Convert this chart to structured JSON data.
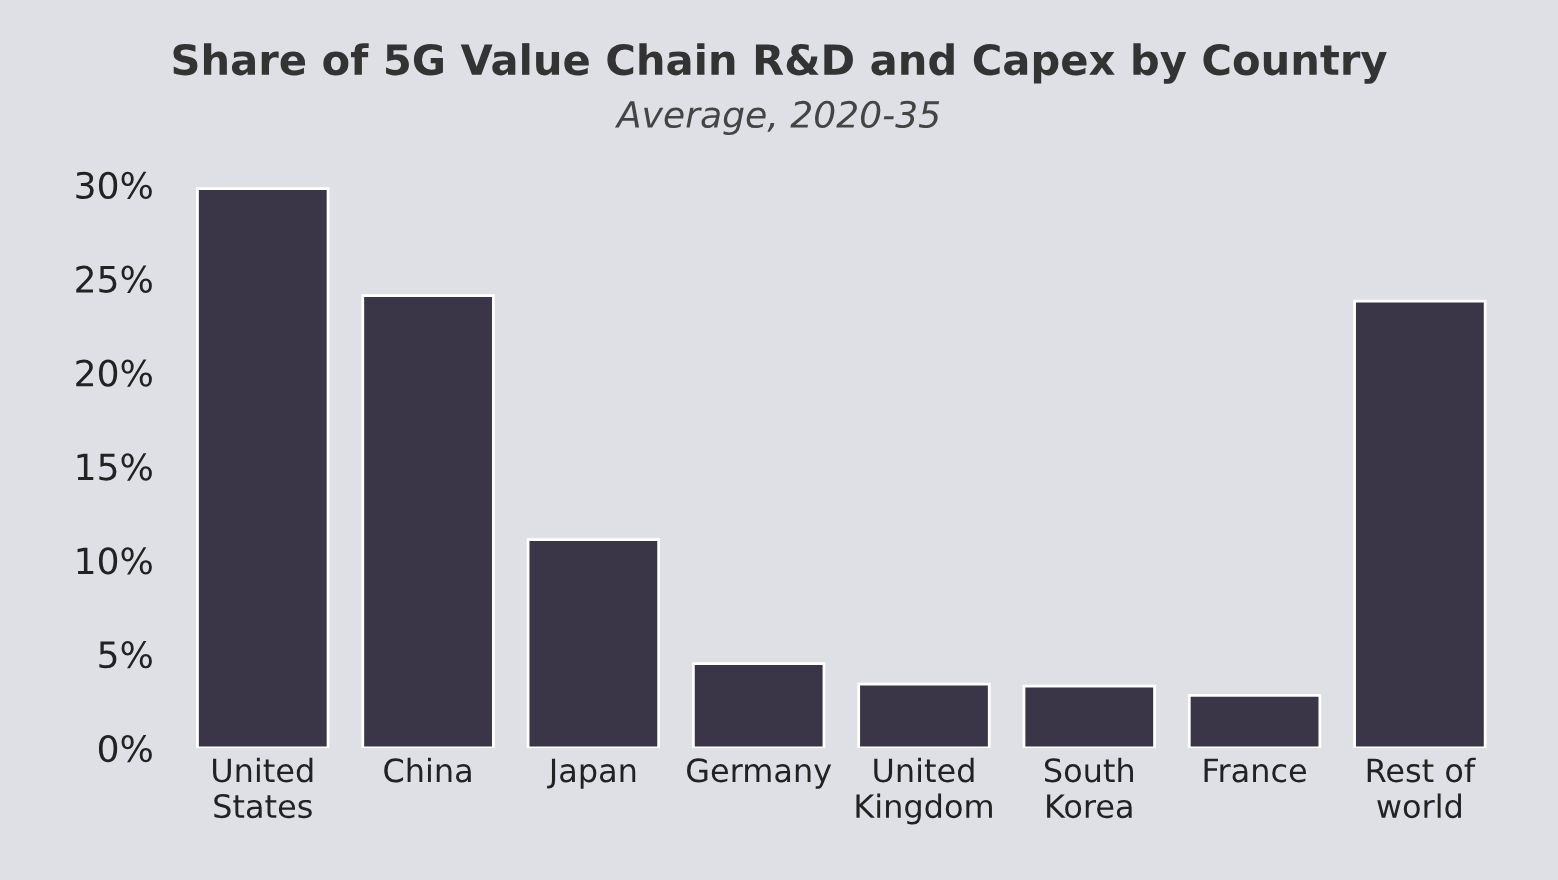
{
  "chart_data": {
    "type": "bar",
    "title": "Share of 5G Value Chain R&D and Capex by Country",
    "subtitle": "Average, 2020-35",
    "categories": [
      "United\nStates",
      "China",
      "Japan",
      "Germany",
      "United\nKingdom",
      "South\nKorea",
      "France",
      "Rest of\nworld"
    ],
    "values": [
      29.8,
      24.1,
      11.1,
      4.5,
      3.4,
      3.3,
      2.8,
      23.8
    ],
    "color": "#3a3547",
    "ylim": [
      0,
      30
    ],
    "yticks": [
      {
        "value": 0,
        "label": "0%"
      },
      {
        "value": 5,
        "label": "5%"
      },
      {
        "value": 10,
        "label": "10%"
      },
      {
        "value": 15,
        "label": "15%"
      },
      {
        "value": 20,
        "label": "20%"
      },
      {
        "value": 25,
        "label": "25%"
      },
      {
        "value": 30,
        "label": "30%"
      }
    ],
    "grid": false,
    "legend": false
  }
}
